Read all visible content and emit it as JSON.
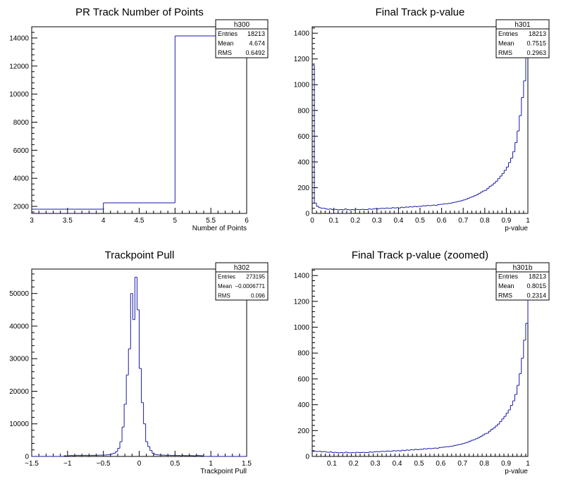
{
  "chart_data": [
    {
      "id": "h300",
      "type": "histogram",
      "title": "PR Track Number of Points",
      "xlabel": "Number of Points",
      "ylabel": "",
      "xlim": [
        3,
        6
      ],
      "ylim": [
        1500,
        14800
      ],
      "xticks": [
        "3",
        "3.5",
        "4",
        "4.5",
        "5",
        "5.5",
        "6"
      ],
      "yticks": [
        "2000",
        "4000",
        "6000",
        "8000",
        "10000",
        "12000",
        "14000"
      ],
      "x_edges": [
        3,
        4,
        5,
        6
      ],
      "values": [
        1800,
        2250,
        14150
      ],
      "stats": {
        "name": "h300",
        "rows": [
          [
            "Entries",
            "18213"
          ],
          [
            "Mean",
            "4.674"
          ],
          [
            "RMS",
            "0.6492"
          ]
        ]
      },
      "color": "#1a1aa8"
    },
    {
      "id": "h301",
      "type": "histogram",
      "title": "Final Track p-value",
      "xlabel": "p-value",
      "ylabel": "",
      "xlim": [
        0,
        1
      ],
      "ylim": [
        0,
        1450
      ],
      "xticks": [
        "0",
        "0.1",
        "0.2",
        "0.3",
        "0.4",
        "0.5",
        "0.6",
        "0.7",
        "0.8",
        "0.9",
        "1"
      ],
      "yticks": [
        "0",
        "200",
        "400",
        "600",
        "800",
        "1000",
        "1200",
        "1400"
      ],
      "bin_start": 0,
      "bin_width": 0.01,
      "values": [
        1150,
        80,
        55,
        45,
        40,
        40,
        35,
        32,
        35,
        30,
        32,
        30,
        28,
        30,
        28,
        35,
        30,
        28,
        30,
        28,
        32,
        30,
        30,
        32,
        30,
        30,
        35,
        32,
        35,
        38,
        35,
        38,
        40,
        38,
        42,
        40,
        40,
        45,
        42,
        45,
        42,
        48,
        45,
        50,
        48,
        52,
        50,
        55,
        52,
        55,
        55,
        60,
        58,
        62,
        60,
        62,
        65,
        62,
        68,
        70,
        72,
        75,
        75,
        78,
        80,
        85,
        88,
        92,
        95,
        100,
        105,
        110,
        118,
        125,
        130,
        138,
        145,
        155,
        165,
        175,
        180,
        195,
        210,
        220,
        235,
        250,
        270,
        290,
        310,
        335,
        360,
        395,
        430,
        480,
        550,
        640,
        760,
        900,
        1030,
        1350
      ],
      "stats": {
        "name": "h301",
        "rows": [
          [
            "Entries",
            "18213"
          ],
          [
            "Mean",
            "0.7515"
          ],
          [
            "RMS",
            "0.2963"
          ]
        ]
      },
      "color": "#1a1aa8"
    },
    {
      "id": "h302",
      "type": "histogram",
      "title": "Trackpoint Pull",
      "xlabel": "Trackpoint Pull",
      "ylabel": "",
      "xlim": [
        -1.5,
        1.5
      ],
      "ylim": [
        0,
        57500
      ],
      "xticks": [
        "−1.5",
        "−1",
        "−0.5",
        "0",
        "0.5",
        "1",
        "1.5"
      ],
      "yticks": [
        "0",
        "10000",
        "20000",
        "30000",
        "40000",
        "50000"
      ],
      "bin_start": -1.5,
      "bin_width": 0.03,
      "values": [
        0,
        0,
        0,
        0,
        0,
        0,
        0,
        0,
        0,
        0,
        0,
        0,
        0,
        0,
        0,
        200,
        150,
        250,
        300,
        250,
        300,
        350,
        300,
        300,
        350,
        300,
        300,
        300,
        350,
        350,
        350,
        400,
        400,
        400,
        450,
        500,
        600,
        800,
        1000,
        1500,
        2500,
        4500,
        9000,
        16000,
        25000,
        33000,
        50000,
        42000,
        55000,
        45000,
        27000,
        16500,
        10000,
        4500,
        3000,
        1800,
        1000,
        600,
        500,
        450,
        400,
        400,
        350,
        350,
        350,
        300,
        350,
        300,
        300,
        250,
        300,
        250,
        250,
        300,
        250,
        200,
        250,
        300,
        250,
        200,
        0,
        0,
        0,
        0,
        0,
        0,
        0,
        0,
        0,
        0,
        0,
        0,
        0,
        0,
        0,
        0,
        0,
        0,
        0,
        0
      ],
      "stats": {
        "name": "h302",
        "rows": [
          [
            "Entries",
            "273195"
          ],
          [
            "Mean",
            "−0.0006771"
          ],
          [
            "RMS",
            "0.096"
          ]
        ]
      },
      "color": "#1a1aa8"
    },
    {
      "id": "h301b",
      "type": "histogram",
      "title": "Final Track p-value (zoomed)",
      "xlabel": "p-value",
      "ylabel": "",
      "xlim": [
        0.01,
        1
      ],
      "ylim": [
        0,
        1450
      ],
      "xticks": [
        "0.1",
        "0.2",
        "0.3",
        "0.4",
        "0.5",
        "0.6",
        "0.7",
        "0.8",
        "0.9",
        "1"
      ],
      "yticks": [
        "0",
        "200",
        "400",
        "600",
        "800",
        "1000",
        "1200",
        "1400"
      ],
      "bin_start": 0.01,
      "bin_width": 0.01,
      "values": [
        45,
        40,
        38,
        40,
        35,
        38,
        34,
        32,
        35,
        30,
        32,
        30,
        28,
        30,
        28,
        33,
        30,
        28,
        30,
        28,
        32,
        30,
        30,
        32,
        30,
        30,
        35,
        32,
        35,
        38,
        35,
        38,
        40,
        38,
        42,
        40,
        40,
        45,
        42,
        45,
        42,
        48,
        45,
        50,
        48,
        52,
        50,
        55,
        52,
        55,
        55,
        60,
        58,
        62,
        60,
        62,
        65,
        62,
        68,
        70,
        72,
        75,
        75,
        78,
        80,
        85,
        88,
        92,
        95,
        100,
        105,
        110,
        118,
        125,
        130,
        138,
        145,
        155,
        165,
        175,
        180,
        195,
        210,
        220,
        235,
        250,
        270,
        290,
        310,
        335,
        360,
        395,
        430,
        480,
        550,
        640,
        760,
        900,
        1030,
        1350
      ],
      "stats": {
        "name": "h301b",
        "rows": [
          [
            "Entries",
            "18213"
          ],
          [
            "Mean",
            "0.8015"
          ],
          [
            "RMS",
            "0.2314"
          ]
        ]
      },
      "color": "#1a1aa8"
    }
  ]
}
